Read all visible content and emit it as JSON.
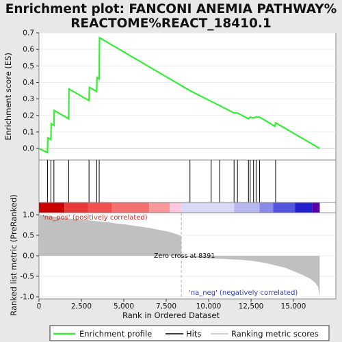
{
  "title_line1": "Enrichment plot: FANCONI ANEMIA PATHWAY%",
  "title_line2": "REACTOME%REACT_18410.1",
  "colors": {
    "es_line": "#33ee33",
    "hit": "#000000",
    "metric_fill": "#c0c0c0",
    "pos_label": "#c0302a",
    "neg_label": "#2a3ec0"
  },
  "labels": {
    "es_ylabel": "Enrichment score (ES)",
    "rank_ylabel": "Ranked list metric (PreRanked)",
    "xlabel": "Rank in Ordered Dataset",
    "pos_corr": "'na_pos' (positively correlated)",
    "neg_corr": "'na_neg' (negatively correlated)",
    "zero_cross": "Zero cross at 8391"
  },
  "legend": {
    "profile": "Enrichment profile",
    "hits": "Hits",
    "ranking": "Ranking metric scores"
  },
  "chart_data": {
    "type": "line",
    "x_range": [
      0,
      17500
    ],
    "x_ticks": [
      0,
      2500,
      5000,
      7500,
      10000,
      12500,
      15000
    ],
    "x_tick_labels": [
      "0",
      "2,500",
      "5,000",
      "7,500",
      "10,000",
      "12,500",
      "15,000"
    ],
    "es_ylim": [
      -0.07,
      0.7
    ],
    "es_yticks": [
      0.0,
      0.1,
      0.2,
      0.3,
      0.4,
      0.5,
      0.6,
      0.7
    ],
    "es_ytick_labels": [
      "0.0",
      "0.1",
      "0.2",
      "0.3",
      "0.4",
      "0.5",
      "0.6",
      "0.7"
    ],
    "rank_ylim": [
      -1.05,
      1.05
    ],
    "rank_yticks": [
      1.0,
      0.5,
      0.0,
      -0.5,
      -1.0
    ],
    "rank_ytick_labels": [
      "1.0",
      "0.5",
      "0.0",
      "-0.5",
      "-1.0"
    ],
    "es_points": [
      [
        0,
        0.0
      ],
      [
        500,
        -0.025
      ],
      [
        520,
        0.065
      ],
      [
        700,
        0.055
      ],
      [
        720,
        0.15
      ],
      [
        880,
        0.14
      ],
      [
        900,
        0.23
      ],
      [
        1750,
        0.18
      ],
      [
        1770,
        0.36
      ],
      [
        2950,
        0.29
      ],
      [
        2970,
        0.37
      ],
      [
        3400,
        0.345
      ],
      [
        3420,
        0.43
      ],
      [
        3550,
        0.42
      ],
      [
        3570,
        0.67
      ],
      [
        8900,
        0.35
      ],
      [
        10150,
        0.285
      ],
      [
        10650,
        0.26
      ],
      [
        11500,
        0.215
      ],
      [
        11700,
        0.215
      ],
      [
        12350,
        0.18
      ],
      [
        12450,
        0.19
      ],
      [
        12650,
        0.185
      ],
      [
        12800,
        0.19
      ],
      [
        13000,
        0.19
      ],
      [
        13900,
        0.135
      ],
      [
        13950,
        0.155
      ],
      [
        16550,
        0.0
      ]
    ],
    "hits": [
      500,
      700,
      880,
      1750,
      2950,
      3400,
      3550,
      8900,
      10150,
      10650,
      11500,
      11700,
      12350,
      12450,
      12650,
      12800,
      13000,
      13950
    ],
    "metric_points": [
      [
        0,
        1.0
      ],
      [
        200,
        0.99
      ],
      [
        500,
        0.97
      ],
      [
        1000,
        0.95
      ],
      [
        1500,
        0.92
      ],
      [
        2000,
        0.9
      ],
      [
        2500,
        0.88
      ],
      [
        3000,
        0.86
      ],
      [
        3500,
        0.84
      ],
      [
        4000,
        0.82
      ],
      [
        4500,
        0.79
      ],
      [
        5000,
        0.77
      ],
      [
        5500,
        0.74
      ],
      [
        6000,
        0.71
      ],
      [
        6500,
        0.68
      ],
      [
        7000,
        0.64
      ],
      [
        7500,
        0.6
      ],
      [
        7800,
        0.57
      ],
      [
        8100,
        0.53
      ],
      [
        8391,
        0.48
      ],
      [
        8391,
        0.0
      ],
      [
        8400,
        -0.02
      ],
      [
        9000,
        -0.04
      ],
      [
        10000,
        -0.06
      ],
      [
        11000,
        -0.08
      ],
      [
        12000,
        -0.1
      ],
      [
        12500,
        -0.12
      ],
      [
        13000,
        -0.15
      ],
      [
        13500,
        -0.19
      ],
      [
        14000,
        -0.24
      ],
      [
        14500,
        -0.29
      ],
      [
        15000,
        -0.37
      ],
      [
        15500,
        -0.46
      ],
      [
        16000,
        -0.56
      ],
      [
        16300,
        -0.66
      ],
      [
        16450,
        -0.76
      ],
      [
        16550,
        -1.0
      ]
    ],
    "heatmap_bands": [
      {
        "from": 0,
        "to": 1500,
        "color": "#cc0000"
      },
      {
        "from": 1500,
        "to": 2900,
        "color": "#e83838"
      },
      {
        "from": 2900,
        "to": 4300,
        "color": "#f05050"
      },
      {
        "from": 4300,
        "to": 6500,
        "color": "#f47070"
      },
      {
        "from": 6500,
        "to": 7700,
        "color": "#f89898"
      },
      {
        "from": 7700,
        "to": 8400,
        "color": "#fbc8e0"
      },
      {
        "from": 8400,
        "to": 11500,
        "color": "#d8d8f8"
      },
      {
        "from": 11500,
        "to": 13000,
        "color": "#b8b8f0"
      },
      {
        "from": 13000,
        "to": 13800,
        "color": "#8a8ae8"
      },
      {
        "from": 13800,
        "to": 15100,
        "color": "#5555dd"
      },
      {
        "from": 15100,
        "to": 16100,
        "color": "#2020cc"
      },
      {
        "from": 16100,
        "to": 16550,
        "color": "#5500aa"
      }
    ]
  }
}
